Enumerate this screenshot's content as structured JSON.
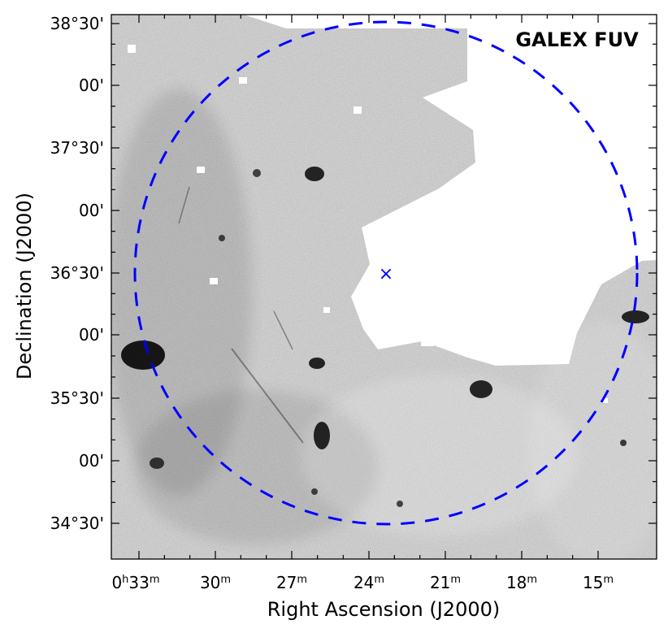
{
  "figure": {
    "label": "GALEX  FUV",
    "colors": {
      "frame": "#000000",
      "overlay": "#0000ff",
      "background": "#ffffff",
      "texture_dark": "#111111",
      "texture_mid": "#777777",
      "texture_light": "#dcdcdc"
    },
    "axes": {
      "x_title": "Right Ascension (J2000)",
      "y_title": "Declination (J2000)",
      "x_ticks": [
        {
          "main": "0",
          "sup1": "h",
          "mid": "33",
          "sup2": "m"
        },
        {
          "main": "",
          "sup1": "",
          "mid": "30",
          "sup2": "m"
        },
        {
          "main": "",
          "sup1": "",
          "mid": "27",
          "sup2": "m"
        },
        {
          "main": "",
          "sup1": "",
          "mid": "24",
          "sup2": "m"
        },
        {
          "main": "",
          "sup1": "",
          "mid": "21",
          "sup2": "m"
        },
        {
          "main": "",
          "sup1": "",
          "mid": "18",
          "sup2": "m"
        },
        {
          "main": "",
          "sup1": "",
          "mid": "15",
          "sup2": "m"
        }
      ],
      "y_ticks": [
        "38°30'",
        "00'",
        "37°30'",
        "00'",
        "36°30'",
        "00'",
        "35°30'",
        "00'",
        "34°30'"
      ]
    },
    "overlays": {
      "center_marker": "×",
      "ellipse_style": "dashed"
    }
  }
}
